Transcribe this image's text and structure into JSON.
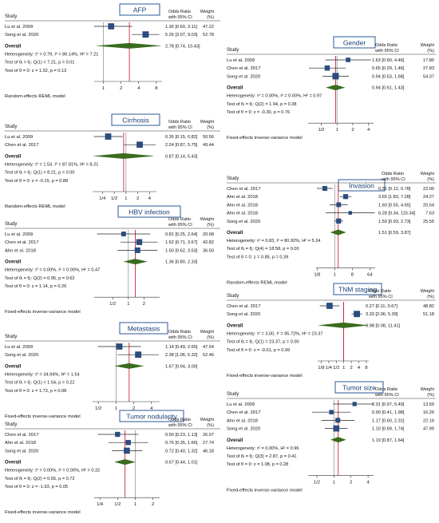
{
  "chart_data": [
    {
      "type": "forest",
      "title": "AFP",
      "header": {
        "study": "Study",
        "or": "Odds Ratio\nwith 95% CI",
        "weight": "Weight\n(%)"
      },
      "studies": [
        {
          "name": "Lu et al. 2009",
          "or": 1.36,
          "lo": 0.6,
          "hi": 3.11,
          "or_text": "1.36 [0.60,   3.11]",
          "weight": "47.22"
        },
        {
          "name": "Song et al. 2020",
          "or": 5.26,
          "lo": 3.07,
          "hi": 9.03,
          "or_text": "5.26 [3.07,   9.03]",
          "weight": "52.78"
        }
      ],
      "overall": {
        "label": "Overall",
        "or": 2.78,
        "lo": 0.74,
        "hi": 10.43,
        "or_text": "2.78 [0.74,  10.43]"
      },
      "stats": [
        "Heterogeneity: τ² = 0.79, I² = 86.14%, H² = 7.21",
        "Test of θᵢ = θⱼ: Q(1) = 7.21, p = 0.01",
        "Test of θ = 0: z = 1.52, p = 0.13"
      ],
      "ticks": [
        "1",
        "2",
        "4",
        "8"
      ],
      "model": "Random-effects REML model",
      "xlim": [
        0.7,
        10
      ]
    },
    {
      "type": "forest",
      "title": "Gender",
      "header": {
        "study": "Study",
        "or": "Odds Ratio\nwith 95% CI",
        "weight": "Weight\n(%)"
      },
      "studies": [
        {
          "name": "Lu et al. 2009",
          "or": 1.63,
          "lo": 0.6,
          "hi": 4.46,
          "or_text": "1.63 [0.60,   4.46]",
          "weight": "17.80"
        },
        {
          "name": "Chen et al. 2017",
          "or": 0.65,
          "lo": 0.29,
          "hi": 1.46,
          "or_text": "0.65 [0.29,   1.46]",
          "weight": "27.83"
        },
        {
          "name": "Song et al. 2020",
          "or": 0.94,
          "lo": 0.53,
          "hi": 1.68,
          "or_text": "0.94 [0.53,   1.68]",
          "weight": "54.37"
        }
      ],
      "overall": {
        "label": "Overall",
        "or": 0.94,
        "lo": 0.61,
        "hi": 1.43,
        "or_text": "0.94 [0.61,   1.43]"
      },
      "stats": [
        "Heterogeneity: τ² = 0.00%, I² = 0.00%, H² = 0.97",
        "Test of θᵢ = θⱼ: Q(2) = 1.94, p = 0.38",
        "Test of θ = 0: z = -0.30, p = 0.76"
      ],
      "ticks": [
        "1/2",
        "1",
        "2",
        "4"
      ],
      "model": "Fixed-effects inverse-variance model",
      "xlim": [
        0.28,
        5
      ]
    },
    {
      "type": "forest",
      "title": "Cirrhosis",
      "header": {
        "study": "Study",
        "or": "Odds Ratio\nwith 95% CI",
        "weight": "Weight\n(%)"
      },
      "studies": [
        {
          "name": "Lu et al. 2009",
          "or": 0.35,
          "lo": 0.15,
          "hi": 0.82,
          "or_text": "0.35 [0.15,   0.82]",
          "weight": "50.56"
        },
        {
          "name": "Chen et al. 2017",
          "or": 2.24,
          "lo": 0.87,
          "hi": 5.75,
          "or_text": "2.24 [0.87,   5.75]",
          "weight": "49.44"
        }
      ],
      "overall": {
        "label": "Overall",
        "or": 0.87,
        "lo": 0.14,
        "hi": 5.43,
        "or_text": "0.87 [0.14,   5.43]"
      },
      "stats": [
        "Heterogeneity: τ² = 1.53, I² = 87.81%, H² = 8.21",
        "Test of θᵢ = θⱼ: Q(1) = 8.21, p = 0.00",
        "Test of θ = 0: z = -0.15, p = 0.88"
      ],
      "ticks": [
        "1/4",
        "1/2",
        "1",
        "2",
        "4"
      ],
      "model": "Random-effects REML model",
      "xlim": [
        0.14,
        6
      ]
    },
    {
      "type": "forest",
      "title": "Invasion",
      "header": {
        "study": "Study",
        "or": "Odds Ratio\nwith 95% CI",
        "weight": "Weight\n(%)"
      },
      "studies": [
        {
          "name": "Chen et al. 2017",
          "or": 0.31,
          "lo": 0.12,
          "hi": 0.78,
          "or_text": "0.31 [0.12,    0.78]",
          "weight": "22.00"
        },
        {
          "name": "Ahn et al. 2018",
          "or": 3.65,
          "lo": 1.83,
          "hi": 7.28,
          "or_text": "3.65 [1.83,    7.28]",
          "weight": "24.27"
        },
        {
          "name": "Ahn et al. 2018",
          "or": 1.6,
          "lo": 0.55,
          "hi": 4.65,
          "or_text": "1.60 [0.55,    4.65]",
          "weight": "20.54"
        },
        {
          "name": "Ahn et al. 2018",
          "or": 6.28,
          "lo": 0.34,
          "hi": 115.34,
          "or_text": "6.28 [0.34, 115.34]",
          "weight": "7.63"
        },
        {
          "name": "Song et al. 2020",
          "or": 1.59,
          "lo": 0.93,
          "hi": 2.73,
          "or_text": "1.59 [0.93,    2.73]",
          "weight": "25.55"
        }
      ],
      "overall": {
        "label": "Overall",
        "or": 1.51,
        "lo": 0.59,
        "hi": 3.87,
        "or_text": "1.51 [0.59,    3.87]"
      },
      "stats": [
        "Heterogeneity: τ² = 0.83, I² = 80.92%, H² = 5.24",
        "Test of θᵢ = θⱼ: Q(4) = 18.58, p = 0.00",
        "Test of θ = 0: z = 0.85, p = 0.39"
      ],
      "ticks": [
        "1/8",
        "1",
        "8",
        "64"
      ],
      "model": "Random-effects REML model",
      "xlim": [
        0.11,
        120
      ]
    },
    {
      "type": "forest",
      "title": "HBV infection",
      "header": {
        "study": "Study",
        "or": "Odds Ratio\nwith 95% CI",
        "weight": "Weight\n(%)"
      },
      "studies": [
        {
          "name": "Lu et al. 2009",
          "or": 0.81,
          "lo": 0.25,
          "hi": 2.64,
          "or_text": "0.81 [0.25,   2.64]",
          "weight": "20.68"
        },
        {
          "name": "Chen et al. 2017",
          "or": 1.62,
          "lo": 0.71,
          "hi": 3.67,
          "or_text": "1.62 [0.71,   3.67]",
          "weight": "42.82"
        },
        {
          "name": "Ahn et al. 2018",
          "or": 1.5,
          "lo": 0.62,
          "hi": 3.63,
          "or_text": "1.50 [0.62,   3.63]",
          "weight": "36.50"
        }
      ],
      "overall": {
        "label": "Overall",
        "or": 1.36,
        "lo": 0.8,
        "hi": 2.33,
        "or_text": "1.36 [0.80,   2.33]"
      },
      "stats": [
        "Heterogeneity: τ² = 0.00%, I² = 0.00%, H² = 0.47",
        "Test of θᵢ = θⱼ: Q(2) = 0.95, p = 0.62",
        "Test of θ = 0: z = 1.14, p = 0.26"
      ],
      "ticks": [
        "1/2",
        "1",
        "2"
      ],
      "model": "Fixed-effects inverse-variance model",
      "xlim": [
        0.22,
        4
      ]
    },
    {
      "type": "forest",
      "title": "TNM staging",
      "header": {
        "study": "Study",
        "or": "Odds Ratio\nwith 95% CI",
        "weight": "Weight\n(%)"
      },
      "studies": [
        {
          "name": "Chen et al. 2017",
          "or": 0.27,
          "lo": 0.11,
          "hi": 0.67,
          "or_text": "0.27 [0.11,   0.67]",
          "weight": "48.82"
        },
        {
          "name": "Song et al. 2020",
          "or": 3.33,
          "lo": 2.06,
          "hi": 5.39,
          "or_text": "3.33 [2.06,   5.39]",
          "weight": "51.18"
        }
      ],
      "overall": {
        "label": "Overall",
        "or": 0.98,
        "lo": 0.08,
        "hi": 11.41,
        "or_text": "0.98 [0.08,  11.41]"
      },
      "stats": [
        "Heterogeneity: τ² = 3.00, I² = 95.72%, H² = 23.37",
        "Test of θᵢ = θⱼ: Q(1) = 23.37, p = 0.00",
        "Test of θ = 0: z = -0.01, p = 0.99"
      ],
      "ticks": [
        "1/8",
        "1/4",
        "1/2",
        "1",
        "2",
        "4",
        "8"
      ],
      "model": "Fixed-effects inverse-variance model",
      "xlim": [
        0.09,
        10
      ]
    },
    {
      "type": "forest",
      "title": "Metastasis",
      "header": {
        "study": "Study",
        "or": "Odds Ratio\nwith 95% CI",
        "weight": "Weight\n(%)"
      },
      "studies": [
        {
          "name": "Lu et al. 2009",
          "or": 1.14,
          "lo": 0.49,
          "hi": 2.65,
          "or_text": "1.14 [0.49,   2.65]",
          "weight": "47.54"
        },
        {
          "name": "Song et al. 2020",
          "or": 2.38,
          "lo": 1.06,
          "hi": 5.32,
          "or_text": "2.38 [1.06,   5.32]",
          "weight": "52.46"
        }
      ],
      "overall": {
        "label": "Overall",
        "or": 1.67,
        "lo": 0.94,
        "hi": 3.0,
        "or_text": "1.67 [0.94,   3.00]"
      },
      "stats": [
        "Heterogeneity: τ² = 34.94%, H² = 1.54",
        "Test of θᵢ = θⱼ: Q(1) = 1.54, p = 0.22",
        "Test of θ = 0: z = 1.73, p = 0.08"
      ],
      "ticks": [
        "1/2",
        "1",
        "2",
        "4"
      ],
      "model": "Fixed-effects inverse-variance model",
      "xlim": [
        0.4,
        5.5
      ]
    },
    {
      "type": "forest",
      "title": "Tumor size",
      "header": {
        "study": "Study",
        "or": "Odds Ratio\nwith 95% CI",
        "weight": "Weight\n(%)"
      },
      "studies": [
        {
          "name": "Lu et al. 2009",
          "or": 2.31,
          "lo": 0.97,
          "hi": 5.49,
          "or_text": "2.31 [0.97,   5.49]",
          "weight": "13.59"
        },
        {
          "name": "Chen et al. 2017",
          "or": 0.9,
          "lo": 0.41,
          "hi": 1.98,
          "or_text": "0.90 [0.41,   1.98]",
          "weight": "16.26"
        },
        {
          "name": "Ahn et al. 2018",
          "or": 1.17,
          "lo": 0.6,
          "hi": 2.31,
          "or_text": "1.17 [0.60,   2.31]",
          "weight": "22.16"
        },
        {
          "name": "Song et al. 2020",
          "or": 1.1,
          "lo": 0.69,
          "hi": 1.74,
          "or_text": "1.10 [0.69,   1.74]",
          "weight": "47.99"
        }
      ],
      "overall": {
        "label": "Overall",
        "or": 1.19,
        "lo": 0.87,
        "hi": 1.64,
        "or_text": "1.19 [0.87,   1.64]"
      },
      "stats": [
        "Heterogeneity: τ² = 0.00%, H² = 0.96",
        "Test of θᵢ = θⱼ: Q(3) = 2.87, p = 0.41",
        "Test of θ = 0: z = 1.08, p = 0.28"
      ],
      "ticks": [
        "1/2",
        "1",
        "2",
        "4"
      ],
      "model": "Fixed-effects inverse-variance model",
      "xlim": [
        0.35,
        5
      ]
    },
    {
      "type": "forest",
      "title": "Tumor nodularity",
      "header": {
        "study": "Study",
        "or": "Odds Ratio\nwith 95% CI",
        "weight": "Weight\n(%)"
      },
      "studies": [
        {
          "name": "Chen et al. 2017",
          "or": 0.5,
          "lo": 0.23,
          "hi": 1.13,
          "or_text": "0.50 [0.23,   1.13]",
          "weight": "26.07"
        },
        {
          "name": "Ahn et al. 2018",
          "or": 0.76,
          "lo": 0.35,
          "hi": 1.66,
          "or_text": "0.76 [0.35,   1.66]",
          "weight": "27.74"
        },
        {
          "name": "Song et al. 2020",
          "or": 0.72,
          "lo": 0.4,
          "hi": 1.32,
          "or_text": "0.72 [0.40,   1.32]",
          "weight": "46.18"
        }
      ],
      "overall": {
        "label": "Overall",
        "or": 0.67,
        "lo": 0.44,
        "hi": 1.01,
        "or_text": "0.67 [0.44,   1.01]"
      },
      "stats": [
        "Heterogeneity: τ² = 0.00%, I² = 0.00%, H² = 0.32",
        "Test of θᵢ = θⱼ: Q(2) = 0.65, p = 0.72",
        "Test of θ = 0: z = -1.93, p = 0.05"
      ],
      "ticks": [
        "1/4",
        "1/2",
        "1",
        "2"
      ],
      "model": "Fixed-effects inverse-variance model",
      "xlim": [
        0.2,
        2.6
      ]
    }
  ],
  "colors": {
    "marker": "#2b4c7e",
    "diamond": "#3a6b1f",
    "null_line": "#cc2a3c",
    "title_box": "#2b5a98"
  }
}
